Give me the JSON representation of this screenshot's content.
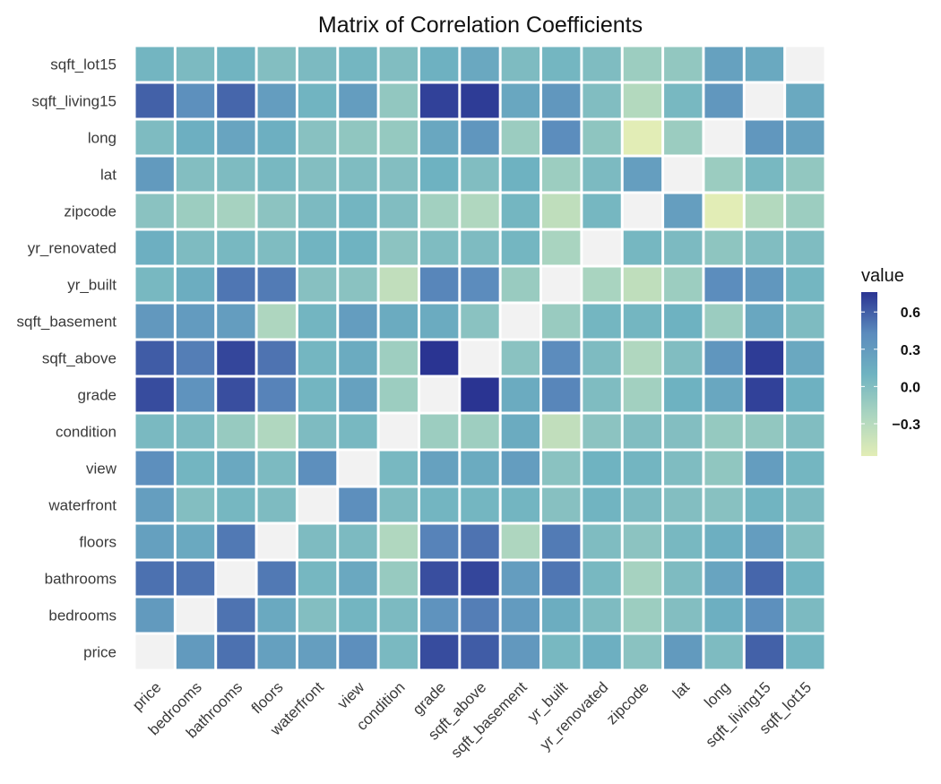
{
  "chart_data": {
    "type": "heatmap",
    "title": "Matrix of Correlation Coefficients",
    "xlabel": "",
    "ylabel": "",
    "variables": [
      "price",
      "bedrooms",
      "bathrooms",
      "floors",
      "waterfront",
      "view",
      "condition",
      "grade",
      "sqft_above",
      "sqft_basement",
      "yr_built",
      "yr_renovated",
      "zipcode",
      "lat",
      "long",
      "sqft_living15",
      "sqft_lot15"
    ],
    "diagonal": "blank",
    "matrix": [
      [
        null,
        0.31,
        0.53,
        0.26,
        0.27,
        0.4,
        0.04,
        0.67,
        0.61,
        0.32,
        0.05,
        0.13,
        -0.05,
        0.31,
        0.02,
        0.59,
        0.08
      ],
      [
        0.31,
        null,
        0.52,
        0.18,
        -0.01,
        0.08,
        0.03,
        0.36,
        0.48,
        0.3,
        0.15,
        0.02,
        -0.15,
        -0.01,
        0.13,
        0.39,
        0.03
      ],
      [
        0.53,
        0.52,
        null,
        0.5,
        0.06,
        0.19,
        -0.12,
        0.66,
        0.69,
        0.28,
        0.51,
        0.05,
        -0.2,
        0.02,
        0.22,
        0.57,
        0.09
      ],
      [
        0.26,
        0.18,
        0.5,
        null,
        0.02,
        0.03,
        -0.26,
        0.46,
        0.52,
        -0.25,
        0.49,
        0.01,
        -0.06,
        0.05,
        0.13,
        0.28,
        -0.01
      ],
      [
        0.27,
        -0.01,
        0.06,
        0.02,
        null,
        0.4,
        0.02,
        0.08,
        0.07,
        0.08,
        -0.03,
        0.09,
        0.03,
        -0.01,
        -0.04,
        0.09,
        0.03
      ],
      [
        0.4,
        0.08,
        0.19,
        0.03,
        0.4,
        null,
        0.05,
        0.25,
        0.17,
        0.28,
        -0.05,
        0.1,
        0.08,
        0.01,
        -0.08,
        0.28,
        0.07
      ],
      [
        0.04,
        0.03,
        -0.12,
        -0.26,
        0.02,
        0.05,
        null,
        -0.15,
        -0.16,
        0.17,
        -0.36,
        -0.06,
        0.0,
        -0.01,
        -0.11,
        -0.09,
        -0.0
      ],
      [
        0.67,
        0.36,
        0.66,
        0.46,
        0.08,
        0.25,
        -0.15,
        null,
        0.76,
        0.17,
        0.45,
        0.01,
        -0.18,
        0.11,
        0.2,
        0.71,
        0.12
      ],
      [
        0.61,
        0.48,
        0.69,
        0.52,
        0.07,
        0.17,
        -0.16,
        0.76,
        null,
        -0.05,
        0.42,
        0.02,
        -0.26,
        0.0,
        0.34,
        0.73,
        0.19
      ],
      [
        0.32,
        0.3,
        0.28,
        -0.25,
        0.08,
        0.28,
        0.17,
        0.17,
        -0.05,
        null,
        -0.13,
        0.07,
        0.07,
        0.11,
        -0.14,
        0.2,
        0.02
      ],
      [
        0.05,
        0.15,
        0.51,
        0.49,
        -0.03,
        -0.05,
        -0.36,
        0.45,
        0.42,
        -0.13,
        null,
        -0.22,
        -0.35,
        -0.15,
        0.41,
        0.33,
        0.07
      ],
      [
        0.13,
        0.02,
        0.05,
        0.01,
        0.09,
        0.1,
        -0.06,
        0.01,
        0.02,
        0.07,
        -0.22,
        null,
        0.06,
        0.03,
        -0.07,
        0.0,
        0.01
      ],
      [
        -0.05,
        -0.15,
        -0.2,
        -0.06,
        0.03,
        0.08,
        0.0,
        -0.18,
        -0.26,
        0.07,
        -0.35,
        0.06,
        null,
        0.27,
        -0.56,
        -0.28,
        -0.15
      ],
      [
        0.31,
        -0.01,
        0.02,
        0.05,
        -0.01,
        0.01,
        -0.01,
        0.11,
        0.0,
        0.11,
        -0.15,
        0.03,
        0.27,
        null,
        -0.14,
        0.05,
        -0.09
      ],
      [
        0.02,
        0.13,
        0.22,
        0.13,
        -0.04,
        -0.08,
        -0.11,
        0.2,
        0.34,
        -0.14,
        0.41,
        -0.07,
        -0.56,
        -0.14,
        null,
        0.33,
        0.25
      ],
      [
        0.59,
        0.39,
        0.57,
        0.28,
        0.09,
        0.28,
        -0.09,
        0.71,
        0.73,
        0.2,
        0.33,
        0.0,
        -0.28,
        0.05,
        0.33,
        null,
        0.18
      ],
      [
        0.08,
        0.03,
        0.09,
        -0.01,
        0.03,
        0.07,
        -0.0,
        0.12,
        0.19,
        0.02,
        0.07,
        0.01,
        -0.15,
        -0.09,
        0.25,
        0.18,
        null
      ]
    ],
    "legend": {
      "title": "value",
      "ticks": [
        0.6,
        0.3,
        0.0,
        -0.3
      ],
      "tick_labels": [
        "0.6",
        "0.3",
        "0.0",
        "−0.3"
      ],
      "range": [
        -0.56,
        0.76
      ],
      "placement": "right"
    },
    "colorscale": [
      "#e2edb6",
      "#abd5c0",
      "#6fb3c1",
      "#5b8bbd",
      "#2a3492"
    ],
    "diagonal_color": "#f2f2f2",
    "grid": false
  }
}
